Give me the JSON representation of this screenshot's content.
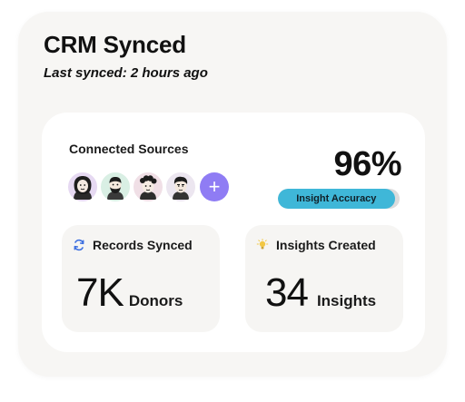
{
  "header": {
    "title": "CRM Synced",
    "subtitle": "Last synced: 2 hours ago"
  },
  "sources": {
    "label": "Connected Sources",
    "avatars": [
      {
        "name": "avatar-1",
        "bg": "#e6d9f2"
      },
      {
        "name": "avatar-2",
        "bg": "#d9efe4"
      },
      {
        "name": "avatar-3",
        "bg": "#f0dfe6"
      },
      {
        "name": "avatar-4",
        "bg": "#ece6f0"
      }
    ],
    "add_symbol": "+"
  },
  "accuracy": {
    "value": "96%",
    "level": 0.96,
    "label": "Insight Accuracy",
    "fill_color": "#3fb7d8"
  },
  "stats": [
    {
      "label": "Records Synced",
      "number": "7K",
      "unit": "Donors",
      "icon": "sync-icon"
    },
    {
      "label": "Insights Created",
      "number": "34",
      "unit": "Insights",
      "icon": "lightbulb-icon"
    }
  ],
  "colors": {
    "accent_purple": "#8f7cf4",
    "sync_blue": "#3b6ee0",
    "bulb_yellow": "#f2c744"
  }
}
